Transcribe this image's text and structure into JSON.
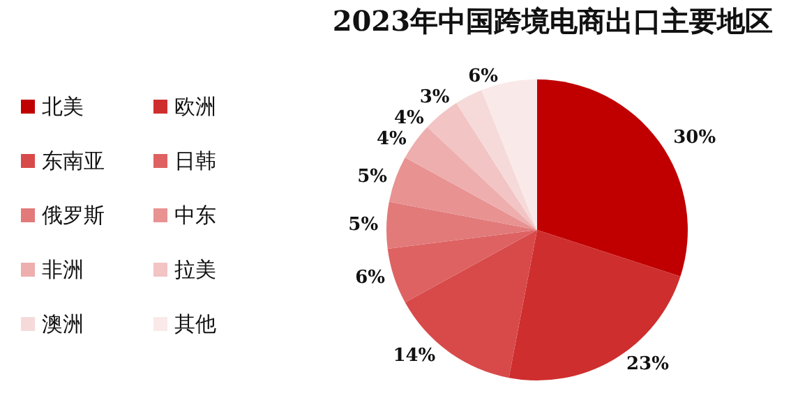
{
  "chart_data": {
    "type": "pie",
    "title": "2023年中国跨境电商出口主要地区",
    "categories": [
      "北美",
      "欧洲",
      "东南亚",
      "日韩",
      "俄罗斯",
      "中东",
      "非洲",
      "拉美",
      "澳洲",
      "其他"
    ],
    "values": [
      30,
      23,
      14,
      6,
      5,
      5,
      4,
      4,
      3,
      6
    ],
    "value_labels": [
      "30%",
      "23%",
      "14%",
      "6%",
      "5%",
      "5%",
      "4%",
      "4%",
      "3%",
      "6%"
    ],
    "colors": [
      "#c00000",
      "#cf2e2e",
      "#d84a4a",
      "#de6262",
      "#e27a7a",
      "#e89292",
      "#eeaeae",
      "#f2c4c4",
      "#f6dada",
      "#fae9e9"
    ],
    "legend": "left"
  }
}
